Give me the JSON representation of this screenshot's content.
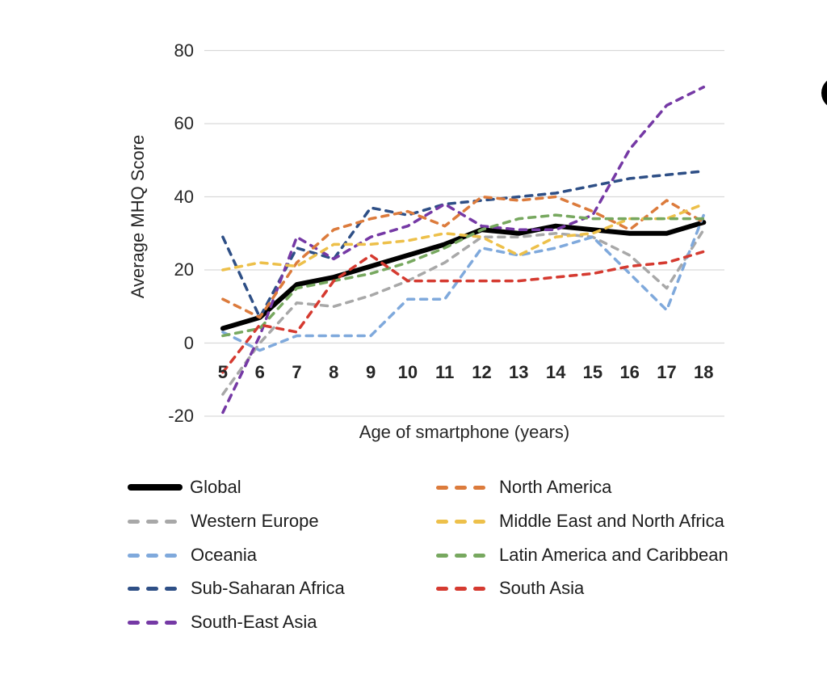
{
  "chart_data": {
    "type": "line",
    "x": [
      "5",
      "6",
      "7",
      "8",
      "9",
      "10",
      "11",
      "12",
      "13",
      "14",
      "15",
      "16",
      "17",
      "18"
    ],
    "xlabel": "Age of smartphone (years)",
    "ylabel": "Average MHQ Score",
    "ylim": [
      -20,
      80
    ],
    "y_ticks": [
      "80",
      "60",
      "40",
      "20",
      "0",
      "-20"
    ],
    "grid": "horizontal-only",
    "gridline_color": "#D9D9D9",
    "legend_position": "bottom-two-columns",
    "series": [
      {
        "name": "Global",
        "color": "#000000",
        "style": "solid",
        "width": 6,
        "values": [
          4,
          7,
          16,
          18,
          21,
          24,
          27,
          31,
          30,
          32,
          31,
          30,
          30,
          33
        ]
      },
      {
        "name": "Western Europe",
        "color": "#A8A8A8",
        "style": "dashed",
        "width": 3.5,
        "values": [
          -14,
          0,
          11,
          10,
          13,
          17,
          22,
          29,
          29,
          30,
          29,
          24,
          15,
          31
        ]
      },
      {
        "name": "Oceania",
        "color": "#7FA9DC",
        "style": "dashed",
        "width": 3.5,
        "values": [
          3,
          -2,
          2,
          2,
          2,
          12,
          12,
          26,
          24,
          26,
          29,
          19,
          9,
          35
        ]
      },
      {
        "name": "Sub-Saharan Africa",
        "color": "#2E4F86",
        "style": "dashed",
        "width": 3.5,
        "values": [
          29,
          7,
          26,
          23,
          37,
          35,
          38,
          39,
          40,
          41,
          43,
          45,
          46,
          47
        ]
      },
      {
        "name": "South-East Asia",
        "color": "#7539A5",
        "style": "dashed",
        "width": 3.5,
        "values": [
          -19,
          2,
          29,
          23,
          29,
          32,
          38,
          32,
          31,
          31,
          35,
          53,
          65,
          70
        ]
      },
      {
        "name": "North America",
        "color": "#DC7B3C",
        "style": "dashed",
        "width": 3.5,
        "values": [
          12,
          7,
          22,
          31,
          34,
          36,
          32,
          40,
          39,
          40,
          36,
          31,
          39,
          33
        ]
      },
      {
        "name": "Middle East and North Africa",
        "color": "#EDC04A",
        "style": "dashed",
        "width": 3.5,
        "values": [
          20,
          22,
          21,
          27,
          27,
          28,
          30,
          29,
          24,
          29,
          30,
          34,
          34,
          38
        ]
      },
      {
        "name": "Latin America and Caribbean",
        "color": "#77A85F",
        "style": "dashed",
        "width": 3.5,
        "values": [
          2,
          4,
          15,
          17,
          19,
          22,
          26,
          31,
          34,
          35,
          34,
          34,
          34,
          34
        ]
      },
      {
        "name": "South Asia",
        "color": "#D53A30",
        "style": "dashed",
        "width": 3.5,
        "values": [
          -8,
          5,
          3,
          17,
          24,
          17,
          17,
          17,
          17,
          18,
          19,
          21,
          22,
          25
        ]
      }
    ],
    "legend_columns": [
      [
        "Global",
        "Western Europe",
        "Oceania",
        "Sub-Saharan Africa",
        "South-East Asia"
      ],
      [
        "North America",
        "Middle East and North Africa",
        "Latin America and Caribbean",
        "South Asia"
      ]
    ]
  },
  "decorations": {
    "edge_circle_color": "#000000"
  }
}
